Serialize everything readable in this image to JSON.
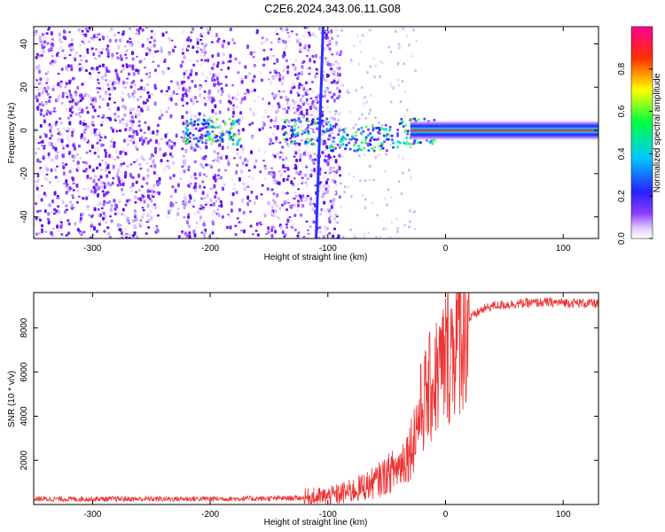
{
  "title": "C2E6.2024.343.06.11.G08",
  "chart_data": [
    {
      "type": "heatmap",
      "xlabel": "Height of straight line (km)",
      "ylabel": "Frequency (Hz)",
      "xlim": [
        -350,
        130
      ],
      "ylim": [
        -50,
        48
      ],
      "xticks": [
        -300,
        -200,
        -100,
        0,
        100
      ],
      "yticks": [
        -40,
        -20,
        0,
        20,
        40
      ],
      "colorbar": {
        "label": "Normalized spectral amplitude",
        "range": [
          0.0,
          1.0
        ],
        "ticks": [
          "0.0",
          "0.2",
          "0.4",
          "0.6",
          "0.8"
        ],
        "colormap": "rainbow (violet → blue → cyan → green → yellow → red → magenta)"
      },
      "features": {
        "noise_region_x": [
          -350,
          -110
        ],
        "diagonal_streak_x": [
          -110,
          -105
        ],
        "carrier_band_x": [
          -30,
          130
        ],
        "carrier_frequency_hz": 0
      }
    },
    {
      "type": "line",
      "xlabel": "Height of straight line (km)",
      "ylabel": "SNR (10 * v/v)",
      "xlim": [
        -350,
        130
      ],
      "ylim": [
        0,
        9600
      ],
      "xticks": [
        -300,
        -200,
        -100,
        0,
        100
      ],
      "yticks": [
        2000,
        4000,
        6000,
        8000
      ],
      "color": "#ee3333",
      "series": [
        {
          "x": [
            -350,
            -300,
            -250,
            -200,
            -150,
            -120,
            -100,
            -80,
            -60,
            -40,
            -30,
            -25,
            -20,
            -15,
            -10,
            -5,
            0,
            10,
            20,
            30,
            40,
            60,
            80,
            100,
            130
          ],
          "values": [
            250,
            250,
            250,
            260,
            270,
            300,
            350,
            600,
            1000,
            1700,
            2500,
            3500,
            4500,
            5000,
            5600,
            6000,
            6600,
            7600,
            8400,
            8800,
            9000,
            9100,
            9150,
            9150,
            9100
          ]
        }
      ]
    }
  ]
}
